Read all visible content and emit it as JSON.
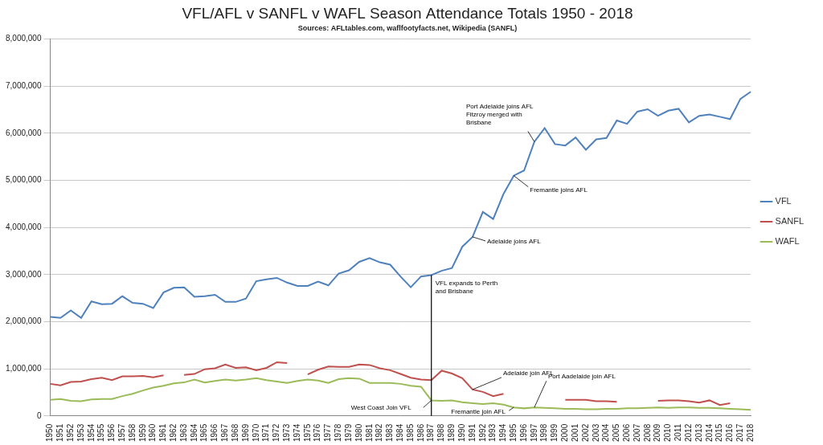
{
  "chart_data": {
    "type": "line",
    "title": "VFL/AFL v SANFL v WAFL Season Attendance Totals 1950 - 2018",
    "subtitle": "Sources: AFLtables.com, waflfootyfacts.net, Wikipedia (SANFL)",
    "categories": [
      1950,
      1951,
      1952,
      1953,
      1954,
      1955,
      1956,
      1957,
      1958,
      1959,
      1960,
      1961,
      1962,
      1963,
      1964,
      1965,
      1966,
      1967,
      1968,
      1969,
      1970,
      1971,
      1972,
      1973,
      1974,
      1975,
      1976,
      1977,
      1978,
      1979,
      1980,
      1981,
      1982,
      1983,
      1984,
      1985,
      1986,
      1987,
      1988,
      1989,
      1990,
      1991,
      1992,
      1993,
      1994,
      1995,
      1996,
      1997,
      1998,
      1999,
      2000,
      2001,
      2002,
      2003,
      2004,
      2005,
      2006,
      2007,
      2008,
      2009,
      2010,
      2011,
      2012,
      2013,
      2014,
      2015,
      2016,
      2017,
      2018
    ],
    "series": [
      {
        "name": "VFL",
        "color": "#4f81bd",
        "values": [
          2100000,
          2080000,
          2240000,
          2080000,
          2430000,
          2370000,
          2380000,
          2540000,
          2400000,
          2380000,
          2290000,
          2620000,
          2720000,
          2730000,
          2530000,
          2540000,
          2570000,
          2420000,
          2420000,
          2490000,
          2860000,
          2900000,
          2930000,
          2830000,
          2760000,
          2760000,
          2850000,
          2770000,
          3020000,
          3090000,
          3270000,
          3350000,
          3260000,
          3210000,
          2960000,
          2730000,
          2960000,
          2990000,
          3080000,
          3140000,
          3590000,
          3800000,
          4330000,
          4180000,
          4710000,
          5100000,
          5210000,
          5820000,
          6110000,
          5770000,
          5740000,
          5910000,
          5650000,
          5870000,
          5900000,
          6270000,
          6200000,
          6460000,
          6510000,
          6370000,
          6480000,
          6520000,
          6230000,
          6370000,
          6400000,
          6350000,
          6300000,
          6730000,
          6880000
        ]
      },
      {
        "name": "SANFL",
        "color": "#c0504d",
        "values": [
          680000,
          650000,
          720000,
          730000,
          780000,
          810000,
          760000,
          840000,
          840000,
          850000,
          820000,
          860000,
          null,
          870000,
          890000,
          990000,
          1010000,
          1090000,
          1020000,
          1030000,
          970000,
          1020000,
          1140000,
          1120000,
          null,
          880000,
          980000,
          1050000,
          1040000,
          1040000,
          1090000,
          1080000,
          1010000,
          970000,
          890000,
          810000,
          770000,
          760000,
          960000,
          900000,
          800000,
          560000,
          510000,
          420000,
          470000,
          null,
          null,
          null,
          null,
          null,
          340000,
          340000,
          340000,
          310000,
          310000,
          300000,
          null,
          null,
          null,
          320000,
          330000,
          330000,
          310000,
          280000,
          330000,
          230000,
          270000,
          null,
          null
        ]
      },
      {
        "name": "WAFL",
        "color": "#9bbb59",
        "values": [
          340000,
          360000,
          320000,
          310000,
          350000,
          360000,
          360000,
          420000,
          470000,
          540000,
          600000,
          640000,
          690000,
          710000,
          770000,
          710000,
          740000,
          770000,
          750000,
          770000,
          800000,
          760000,
          730000,
          700000,
          740000,
          770000,
          750000,
          700000,
          780000,
          800000,
          790000,
          700000,
          700000,
          700000,
          680000,
          640000,
          620000,
          330000,
          320000,
          330000,
          290000,
          270000,
          250000,
          270000,
          240000,
          180000,
          160000,
          180000,
          170000,
          160000,
          150000,
          150000,
          140000,
          140000,
          150000,
          150000,
          160000,
          160000,
          170000,
          180000,
          170000,
          180000,
          180000,
          170000,
          170000,
          160000,
          150000,
          140000,
          130000
        ]
      }
    ],
    "ylim": [
      0,
      8000000
    ],
    "yticks": [
      0,
      {
        "value": 1000000,
        "label": "1,000,000"
      },
      {
        "value": 2000000,
        "label": "2,000,000"
      },
      {
        "value": 3000000,
        "label": "3,000,000"
      },
      {
        "value": 4000000,
        "label": "4,000,000"
      },
      {
        "value": 5000000,
        "label": "5,000,000"
      },
      {
        "value": 6000000,
        "label": "6,000,000"
      },
      {
        "value": 7000000,
        "label": "7,000,000"
      },
      {
        "value": 8000000,
        "label": "8,000,000"
      }
    ],
    "grid": "y",
    "legend": "right",
    "annotations": [
      {
        "text": [
          "Port Adelaide joins AFL",
          "Fitzroy merged with",
          "Brisbane"
        ],
        "series": "VFL",
        "x": 1997
      },
      {
        "text": [
          "Fremantle joins AFL"
        ],
        "series": "VFL",
        "x": 1995
      },
      {
        "text": [
          "Adelaide joins AFL"
        ],
        "series": "VFL",
        "x": 1991
      },
      {
        "text": [
          "VFL expands to Perth",
          "and Brisbane"
        ],
        "series": "VFL",
        "x": 1987,
        "line_style": "vertical"
      },
      {
        "text": [
          "Adelaide join AFL"
        ],
        "series": "SANFL",
        "x": 1991
      },
      {
        "text": [
          "Port Aadelaide join AFL"
        ],
        "series": "WAFL",
        "x": 1997
      },
      {
        "text": [
          "West Coast Join VFL"
        ],
        "series": "WAFL",
        "x": 1987
      },
      {
        "text": [
          "Fremantle join AFL"
        ],
        "series": "WAFL",
        "x": 1995
      }
    ]
  }
}
